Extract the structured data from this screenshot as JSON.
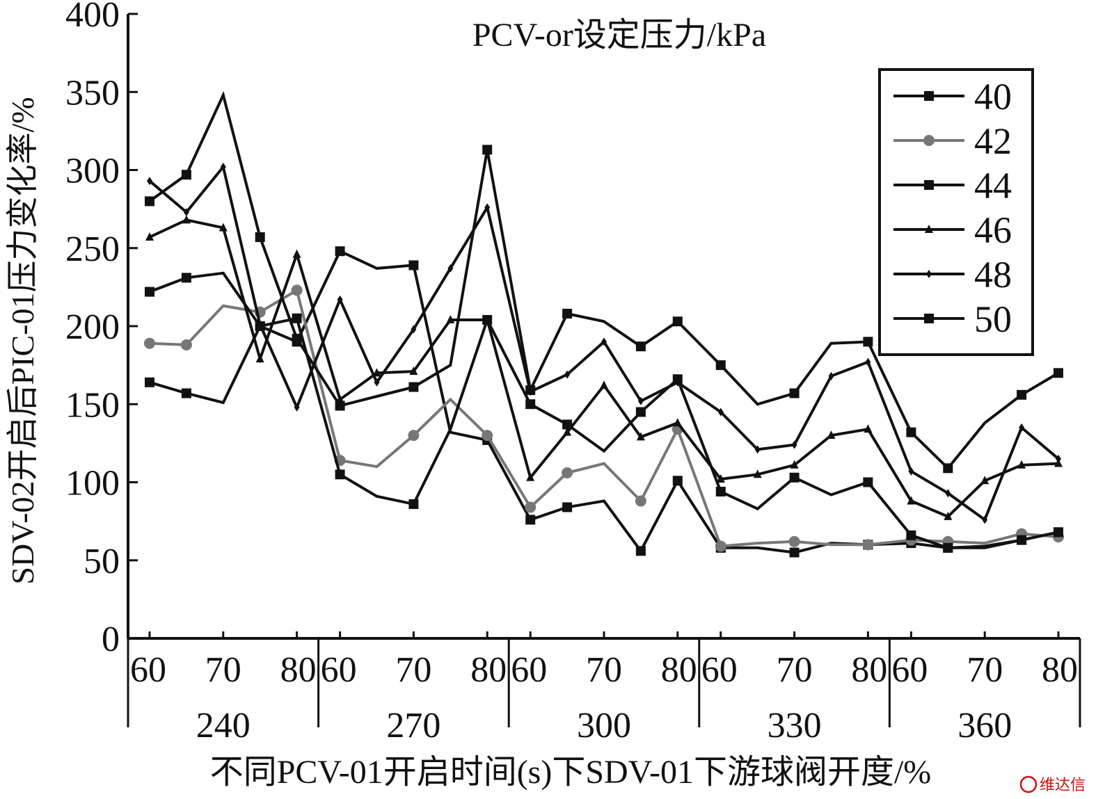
{
  "chart_data": {
    "type": "line",
    "title": "PCV-or设定压力/kPa",
    "ylabel": "SDV-02开启后PIC-01压力变化率/%",
    "xlabel": "不同PCV-01开启时间(s)下SDV-01下游球阀开度/%",
    "ylim": [
      0,
      400
    ],
    "yticks": [
      "0",
      "50",
      "100",
      "150",
      "200",
      "250",
      "300",
      "350",
      "400"
    ],
    "grid": false,
    "legend_position": "top-right",
    "x_tick_labels": [
      "60",
      "70",
      "80"
    ],
    "groups": [
      "240",
      "270",
      "300",
      "330",
      "360"
    ],
    "categories": [
      "240-60",
      "240-65",
      "240-70",
      "240-75",
      "240-80",
      "270-60",
      "270-65",
      "270-70",
      "270-75",
      "270-80",
      "300-60",
      "300-65",
      "300-70",
      "300-75",
      "300-80",
      "330-60",
      "330-65",
      "330-70",
      "330-75",
      "330-80",
      "360-60",
      "360-65",
      "360-70",
      "360-75",
      "360-80"
    ],
    "series": [
      {
        "name": "40",
        "color": "#111111",
        "marker": "square",
        "values": [
          164,
          157,
          151,
          200,
          190,
          248,
          237,
          239,
          132,
          127,
          76,
          84,
          88,
          56,
          101,
          58,
          58,
          55,
          61,
          60,
          61,
          58,
          59,
          63,
          68
        ]
      },
      {
        "name": "42",
        "color": "#777777",
        "marker": "circle",
        "values": [
          189,
          188,
          213,
          209,
          223,
          114,
          110,
          130,
          153,
          130,
          84,
          106,
          112,
          88,
          134,
          59,
          61,
          62,
          60,
          60,
          63,
          62,
          61,
          67,
          65
        ]
      },
      {
        "name": "44",
        "color": "#111111",
        "marker": "square",
        "values": [
          222,
          231,
          234,
          200,
          205,
          105,
          91,
          86,
          134,
          204,
          150,
          137,
          120,
          145,
          166,
          94,
          83,
          103,
          92,
          100,
          66,
          58,
          58,
          63,
          68
        ]
      },
      {
        "name": "46",
        "color": "#111111",
        "marker": "triangle",
        "values": [
          257,
          268,
          263,
          179,
          246,
          153,
          170,
          171,
          204,
          204,
          103,
          132,
          162,
          129,
          138,
          102,
          105,
          111,
          130,
          134,
          88,
          78,
          101,
          111,
          112
        ]
      },
      {
        "name": "48",
        "color": "#111111",
        "marker": "diamond",
        "values": [
          293,
          273,
          302,
          201,
          148,
          217,
          164,
          198,
          237,
          276,
          158,
          169,
          190,
          152,
          164,
          145,
          121,
          124,
          168,
          177,
          107,
          93,
          76,
          135,
          115
        ]
      },
      {
        "name": "50",
        "color": "#111111",
        "marker": "square",
        "values": [
          280,
          297,
          348,
          257,
          192,
          149,
          155,
          161,
          175,
          313,
          159,
          208,
          203,
          187,
          203,
          175,
          150,
          157,
          189,
          190,
          132,
          109,
          138,
          156,
          170
        ]
      }
    ]
  },
  "watermark": "维达信"
}
